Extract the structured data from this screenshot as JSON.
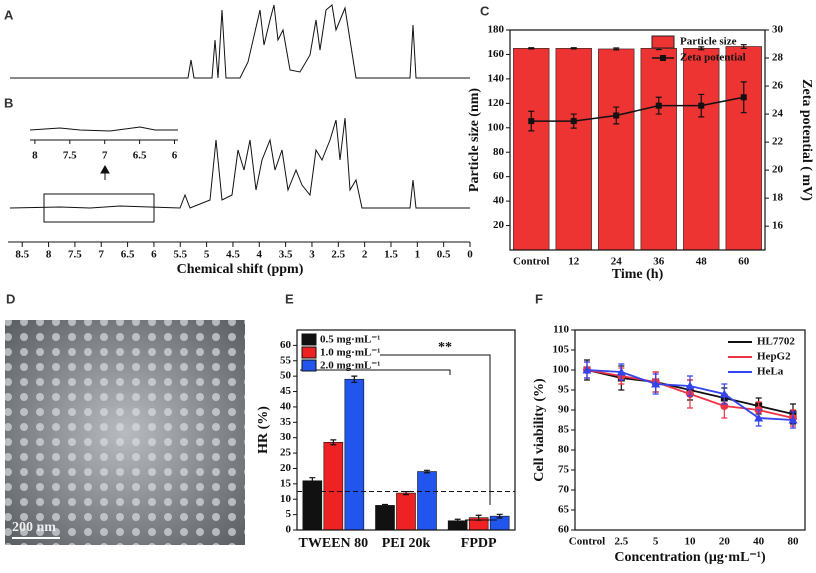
{
  "chart_data": [
    {
      "type": "nmr",
      "labels": [
        "A",
        "B"
      ],
      "xlabel": "Chemical shift (ppm)",
      "xlim": [
        8.77,
        0
      ],
      "xticks": [
        8.5,
        8,
        7.5,
        7,
        6.5,
        6,
        5.5,
        5,
        4.5,
        4,
        3.5,
        3,
        2.5,
        2,
        1.5,
        1,
        0.5,
        0
      ],
      "inset_xlim": [
        8.07,
        5.95
      ],
      "inset_xticks": [
        8,
        7.5,
        7,
        6.5,
        6
      ]
    },
    {
      "type": "bar_line",
      "label": "C",
      "xlabel": "Time (h)",
      "ylabel": "Particle size (nm)",
      "y2label": "Zeta potential ( mV)",
      "categories": [
        "Control",
        "12",
        "24",
        "36",
        "48",
        "60"
      ],
      "ylim": [
        0,
        180
      ],
      "yticks": [
        20,
        40,
        60,
        80,
        100,
        120,
        140,
        160,
        180
      ],
      "y2lim": [
        14.3,
        30
      ],
      "y2ticks": [
        16,
        18,
        20,
        22,
        24,
        26,
        28,
        30
      ],
      "series": [
        {
          "name": "Particle size",
          "color": "#ee3333",
          "values": [
            165,
            165,
            164.5,
            165,
            165,
            166.5
          ],
          "errors": [
            0.5,
            0.5,
            0.8,
            1,
            1.2,
            1.5
          ]
        },
        {
          "name": "Zeta potential",
          "color": "#111111",
          "axis": "y2",
          "values": [
            23.5,
            23.5,
            23.9,
            24.6,
            24.6,
            25.2
          ],
          "errors": [
            0.7,
            0.5,
            0.6,
            0.6,
            0.8,
            1.1
          ]
        }
      ]
    },
    {
      "type": "image",
      "label": "D",
      "scale_bar": "200 nm"
    },
    {
      "type": "grouped_bar",
      "label": "E",
      "ylabel": "HR (%)",
      "annotation": "**",
      "categories": [
        "TWEEN 80",
        "PEI 20k",
        "FPDP"
      ],
      "ylim": [
        0,
        65
      ],
      "yticks": [
        0,
        5,
        10,
        15,
        20,
        25,
        30,
        35,
        40,
        45,
        50,
        55,
        60
      ],
      "reference_line": 12.5,
      "series": [
        {
          "name": "0.5 mg·mL⁻¹",
          "color": "#111111",
          "values": [
            16,
            8,
            3
          ],
          "errors": [
            1,
            0.3,
            0.5
          ]
        },
        {
          "name": "1.0 mg·mL⁻¹",
          "color": "#ee2222",
          "values": [
            28.5,
            12,
            4
          ],
          "errors": [
            0.8,
            0.5,
            0.8
          ]
        },
        {
          "name": "2.0 mg·mL⁻¹",
          "color": "#2255ee",
          "values": [
            49,
            19,
            4.5
          ],
          "errors": [
            1,
            0.4,
            0.6
          ]
        }
      ]
    },
    {
      "type": "line",
      "label": "F",
      "xlabel": "Concentration (μg·mL⁻¹)",
      "ylabel": "Cell viability (%)",
      "categories": [
        "Control",
        "2.5",
        "5",
        "10",
        "20",
        "40",
        "80"
      ],
      "ylim": [
        60,
        110
      ],
      "yticks": [
        60,
        65,
        70,
        75,
        80,
        85,
        90,
        95,
        100,
        105,
        110
      ],
      "series": [
        {
          "name": "HL7702",
          "color": "#111111",
          "values": [
            100,
            98,
            97,
            95,
            93,
            91,
            89
          ],
          "errors": [
            2.5,
            3,
            2.5,
            2.5,
            2.5,
            2,
            2.5
          ]
        },
        {
          "name": "HepG2",
          "color": "#ee3344",
          "values": [
            100,
            98.5,
            97,
            94,
            91,
            90,
            88
          ],
          "errors": [
            2,
            2,
            2.5,
            3.5,
            3,
            2,
            2
          ]
        },
        {
          "name": "HeLa",
          "color": "#3344ee",
          "values": [
            100,
            99.5,
            96.5,
            96,
            94,
            88,
            87.5
          ],
          "errors": [
            2,
            2,
            2.5,
            2.5,
            2.5,
            2,
            2
          ]
        }
      ]
    }
  ]
}
